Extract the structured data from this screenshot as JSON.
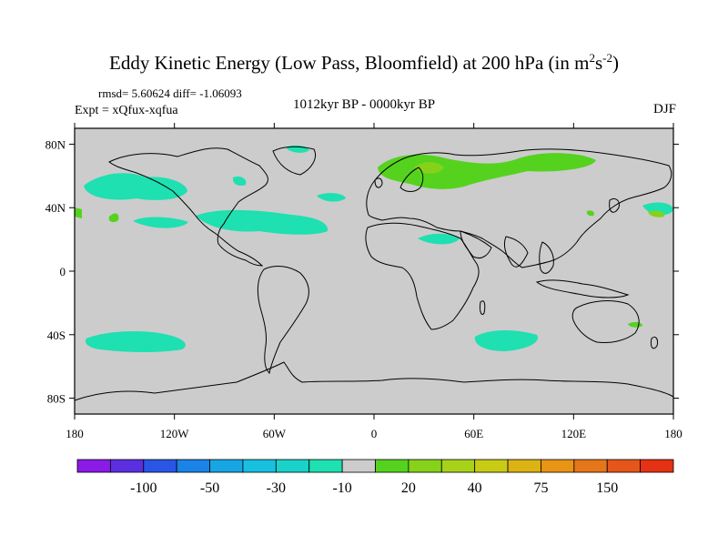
{
  "title": {
    "main": "Eddy Kinetic Energy (Low Pass, Bloomfield) at 200 hPa (in m",
    "sup1": "2",
    "mid": "s",
    "sup2": "-2",
    "end": ")"
  },
  "stats": "rmsd= 5.60624 diff= -1.06093",
  "experiment": "Expt = xQfux-xqfua",
  "period": "1012kyr BP - 0000kyr BP",
  "season": "DJF",
  "map": {
    "land_fill": "#cccccc",
    "lon_ticks": [
      "180",
      "120W",
      "60W",
      "0",
      "60E",
      "120E",
      "180"
    ],
    "lat_ticks": [
      "80N",
      "40N",
      "0",
      "40S",
      "80S"
    ]
  },
  "colorbar": {
    "colors": [
      "#8a1ae6",
      "#5b2fe0",
      "#2a55e6",
      "#1a83e6",
      "#17a6e3",
      "#17c0e0",
      "#1ad2c9",
      "#1ee0b0",
      "#cccccc",
      "#55d21e",
      "#86d21a",
      "#a8d21a",
      "#c8cc14",
      "#dcb214",
      "#e89414",
      "#e6761a",
      "#e6561a",
      "#e63214"
    ],
    "labels": [
      "-100",
      "-50",
      "-30",
      "-10",
      "20",
      "40",
      "75",
      "150"
    ]
  },
  "regions": [
    {
      "name": "n-pacific-west",
      "color": "#1ee0b0"
    },
    {
      "name": "pacific-subtropical",
      "color": "#1ee0b0"
    },
    {
      "name": "atlantic-band",
      "color": "#1ee0b0"
    },
    {
      "name": "eurasia-band",
      "color": "#55d21e"
    },
    {
      "name": "scandinavia-core",
      "color": "#86d21a"
    },
    {
      "name": "south-pacific",
      "color": "#1ee0b0"
    },
    {
      "name": "south-indian",
      "color": "#1ee0b0"
    }
  ]
}
